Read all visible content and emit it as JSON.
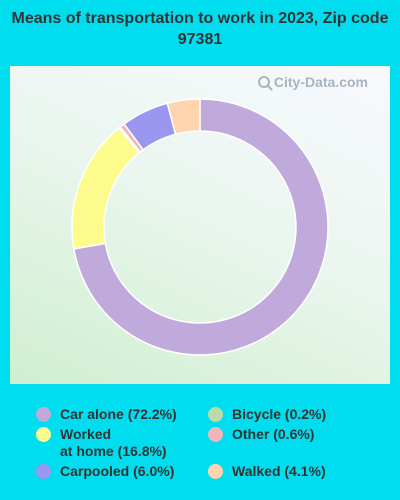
{
  "chart_data": {
    "type": "pie",
    "donut": true,
    "title": "Means of transportation to work in 2023, Zip code 97381",
    "watermark": "City-Data.com",
    "unit": "%",
    "slices": [
      {
        "label": "Car alone (72.2%)",
        "value": 72.2,
        "color": "#c0aadc"
      },
      {
        "label": "Bicycle (0.2%)",
        "value": 0.2,
        "color": "#bcd9a8"
      },
      {
        "label": "Worked\nat home (16.8%)",
        "value": 16.8,
        "color": "#fdfb8c"
      },
      {
        "label": "Other (0.6%)",
        "value": 0.6,
        "color": "#efb5b9"
      },
      {
        "label": "Carpooled (6.0%)",
        "value": 6.0,
        "color": "#9b96ef"
      },
      {
        "label": "Walked (4.1%)",
        "value": 4.1,
        "color": "#fdd4ad"
      }
    ],
    "legend_placement": "bottom"
  }
}
